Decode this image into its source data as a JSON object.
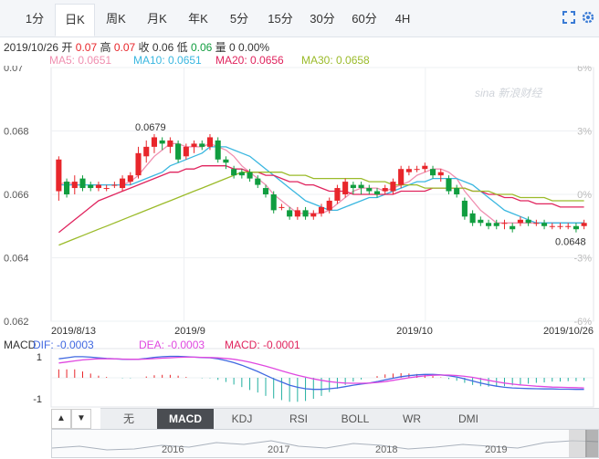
{
  "tabs": [
    "1分",
    "日K",
    "周K",
    "月K",
    "年K",
    "5分",
    "15分",
    "30分",
    "60分",
    "4H"
  ],
  "active_tab": "日K",
  "info": {
    "date": "2019/10/26",
    "open_label": "开",
    "open": "0.07",
    "high_label": "高",
    "high": "0.07",
    "close_label": "收",
    "close": "0.06",
    "low_label": "低",
    "low": "0.06",
    "volume_label": "量",
    "volume": "0 0.00%"
  },
  "ma": {
    "ma5": "MA5: 0.0651",
    "ma10": "MA10: 0.0651",
    "ma20": "MA20: 0.0656",
    "ma30": "MA30: 0.0658"
  },
  "macd_header": {
    "label": "MACD",
    "dif": "DIF: -0.0003",
    "dea": "DEA: -0.0003",
    "macd": "MACD: -0.0001"
  },
  "indicators": [
    "无",
    "MACD",
    "KDJ",
    "RSI",
    "BOLL",
    "WR",
    "DMI"
  ],
  "active_indicator": "MACD",
  "navigator_years": [
    "2016",
    "2017",
    "2018",
    "2019"
  ],
  "watermark": "sina 新浪财经",
  "colors": {
    "up": "#e8262b",
    "down": "#109d3f",
    "ma5": "#f08fb0",
    "ma10": "#3ab7e0",
    "ma20": "#e0245e",
    "ma30": "#9bbb2a",
    "dif": "#4169e1",
    "dea": "#e048e0"
  },
  "chart_data": {
    "type": "candlestick",
    "y_ticks_left": [
      "0.07",
      "0.068",
      "0.066",
      "0.064",
      "0.062"
    ],
    "y_ticks_right": [
      "6%",
      "3%",
      "0%",
      "-3%",
      "-6%"
    ],
    "ylim": [
      0.062,
      0.07
    ],
    "x_labels": [
      "2019/8/13",
      "2019/9",
      "2019/10",
      "2019/10/26"
    ],
    "annotations": {
      "max": "0.0679",
      "min": "0.0648"
    },
    "candles": [
      {
        "o": 0.0661,
        "c": 0.0671,
        "h": 0.0672,
        "l": 0.0658
      },
      {
        "o": 0.0664,
        "c": 0.066,
        "h": 0.0665,
        "l": 0.0659
      },
      {
        "o": 0.0662,
        "c": 0.0664,
        "h": 0.0666,
        "l": 0.066
      },
      {
        "o": 0.0665,
        "c": 0.0662,
        "h": 0.0666,
        "l": 0.0661
      },
      {
        "o": 0.0663,
        "c": 0.0662,
        "h": 0.0664,
        "l": 0.0661
      },
      {
        "o": 0.0662,
        "c": 0.0663,
        "h": 0.0664,
        "l": 0.0661
      },
      {
        "o": 0.0662,
        "c": 0.0662,
        "h": 0.0663,
        "l": 0.0661
      },
      {
        "o": 0.0663,
        "c": 0.0663,
        "h": 0.0664,
        "l": 0.0662
      },
      {
        "o": 0.0662,
        "c": 0.0665,
        "h": 0.0666,
        "l": 0.0661
      },
      {
        "o": 0.0664,
        "c": 0.0666,
        "h": 0.0667,
        "l": 0.0663
      },
      {
        "o": 0.0666,
        "c": 0.0673,
        "h": 0.0675,
        "l": 0.0665
      },
      {
        "o": 0.0672,
        "c": 0.0675,
        "h": 0.0677,
        "l": 0.067
      },
      {
        "o": 0.0675,
        "c": 0.0678,
        "h": 0.0679,
        "l": 0.0673
      },
      {
        "o": 0.0677,
        "c": 0.0676,
        "h": 0.0678,
        "l": 0.0674
      },
      {
        "o": 0.0675,
        "c": 0.0677,
        "h": 0.0678,
        "l": 0.0673
      },
      {
        "o": 0.0676,
        "c": 0.0671,
        "h": 0.0677,
        "l": 0.067
      },
      {
        "o": 0.0672,
        "c": 0.0675,
        "h": 0.0676,
        "l": 0.0671
      },
      {
        "o": 0.0675,
        "c": 0.0676,
        "h": 0.0677,
        "l": 0.0673
      },
      {
        "o": 0.0676,
        "c": 0.0675,
        "h": 0.0677,
        "l": 0.0674
      },
      {
        "o": 0.0675,
        "c": 0.0678,
        "h": 0.0679,
        "l": 0.0674
      },
      {
        "o": 0.0677,
        "c": 0.0671,
        "h": 0.0678,
        "l": 0.067
      },
      {
        "o": 0.0671,
        "c": 0.067,
        "h": 0.0672,
        "l": 0.0668
      },
      {
        "o": 0.0668,
        "c": 0.0666,
        "h": 0.0669,
        "l": 0.0665
      },
      {
        "o": 0.0667,
        "c": 0.0666,
        "h": 0.0668,
        "l": 0.0665
      },
      {
        "o": 0.0667,
        "c": 0.0665,
        "h": 0.0668,
        "l": 0.0664
      },
      {
        "o": 0.0665,
        "c": 0.0663,
        "h": 0.0666,
        "l": 0.0662
      },
      {
        "o": 0.0662,
        "c": 0.066,
        "h": 0.0663,
        "l": 0.0659
      },
      {
        "o": 0.066,
        "c": 0.0655,
        "h": 0.0661,
        "l": 0.0654
      },
      {
        "o": 0.0656,
        "c": 0.0656,
        "h": 0.0657,
        "l": 0.0655
      },
      {
        "o": 0.0655,
        "c": 0.0653,
        "h": 0.0656,
        "l": 0.0652
      },
      {
        "o": 0.0653,
        "c": 0.0655,
        "h": 0.0656,
        "l": 0.0652
      },
      {
        "o": 0.0655,
        "c": 0.0653,
        "h": 0.0656,
        "l": 0.0652
      },
      {
        "o": 0.0653,
        "c": 0.0654,
        "h": 0.0655,
        "l": 0.0652
      },
      {
        "o": 0.0654,
        "c": 0.0656,
        "h": 0.0657,
        "l": 0.0653
      },
      {
        "o": 0.0655,
        "c": 0.0658,
        "h": 0.0659,
        "l": 0.0654
      },
      {
        "o": 0.0658,
        "c": 0.0662,
        "h": 0.0663,
        "l": 0.0657
      },
      {
        "o": 0.066,
        "c": 0.0664,
        "h": 0.0665,
        "l": 0.0659
      },
      {
        "o": 0.0663,
        "c": 0.0662,
        "h": 0.0664,
        "l": 0.066
      },
      {
        "o": 0.0663,
        "c": 0.0662,
        "h": 0.0664,
        "l": 0.066
      },
      {
        "o": 0.0662,
        "c": 0.0661,
        "h": 0.0663,
        "l": 0.066
      },
      {
        "o": 0.0661,
        "c": 0.066,
        "h": 0.0662,
        "l": 0.0659
      },
      {
        "o": 0.0661,
        "c": 0.0662,
        "h": 0.0663,
        "l": 0.066
      },
      {
        "o": 0.0661,
        "c": 0.0664,
        "h": 0.0665,
        "l": 0.066
      },
      {
        "o": 0.0663,
        "c": 0.0668,
        "h": 0.0669,
        "l": 0.0662
      },
      {
        "o": 0.0667,
        "c": 0.0668,
        "h": 0.0669,
        "l": 0.0666
      },
      {
        "o": 0.0668,
        "c": 0.0668,
        "h": 0.0669,
        "l": 0.0667
      },
      {
        "o": 0.0668,
        "c": 0.0669,
        "h": 0.067,
        "l": 0.0667
      },
      {
        "o": 0.0668,
        "c": 0.0666,
        "h": 0.0669,
        "l": 0.0665
      },
      {
        "o": 0.0666,
        "c": 0.0667,
        "h": 0.0668,
        "l": 0.0664
      },
      {
        "o": 0.0665,
        "c": 0.0661,
        "h": 0.0666,
        "l": 0.066
      },
      {
        "o": 0.0662,
        "c": 0.066,
        "h": 0.0663,
        "l": 0.0659
      },
      {
        "o": 0.0658,
        "c": 0.0653,
        "h": 0.0659,
        "l": 0.0652
      },
      {
        "o": 0.0654,
        "c": 0.0651,
        "h": 0.0655,
        "l": 0.065
      },
      {
        "o": 0.0652,
        "c": 0.0651,
        "h": 0.0653,
        "l": 0.065
      },
      {
        "o": 0.0651,
        "c": 0.065,
        "h": 0.0652,
        "l": 0.0649
      },
      {
        "o": 0.0651,
        "c": 0.065,
        "h": 0.0652,
        "l": 0.0649
      },
      {
        "o": 0.0651,
        "c": 0.0651,
        "h": 0.0652,
        "l": 0.0649
      },
      {
        "o": 0.065,
        "c": 0.0649,
        "h": 0.0651,
        "l": 0.0648
      },
      {
        "o": 0.0651,
        "c": 0.0652,
        "h": 0.0653,
        "l": 0.065
      },
      {
        "o": 0.0652,
        "c": 0.0651,
        "h": 0.0653,
        "l": 0.065
      },
      {
        "o": 0.0651,
        "c": 0.0651,
        "h": 0.0652,
        "l": 0.065
      },
      {
        "o": 0.0651,
        "c": 0.065,
        "h": 0.0652,
        "l": 0.0649
      },
      {
        "o": 0.065,
        "c": 0.065,
        "h": 0.0651,
        "l": 0.0649
      },
      {
        "o": 0.065,
        "c": 0.065,
        "h": 0.0651,
        "l": 0.0649
      },
      {
        "o": 0.065,
        "c": 0.065,
        "h": 0.0651,
        "l": 0.0649
      },
      {
        "o": 0.065,
        "c": 0.0649,
        "h": 0.0651,
        "l": 0.0648
      },
      {
        "o": 0.065,
        "c": 0.0651,
        "h": 0.0652,
        "l": 0.0649
      }
    ],
    "ma_lines": {
      "ma5": [
        0.0663,
        0.0664,
        0.0663,
        0.0663,
        0.0663,
        0.0663,
        0.0663,
        0.0663,
        0.0663,
        0.0664,
        0.0666,
        0.0669,
        0.0672,
        0.0674,
        0.0676,
        0.0676,
        0.0675,
        0.0675,
        0.0675,
        0.0676,
        0.0675,
        0.0674,
        0.0672,
        0.0669,
        0.0667,
        0.0665,
        0.0663,
        0.066,
        0.0658,
        0.0656,
        0.0654,
        0.0654,
        0.0654,
        0.0654,
        0.0655,
        0.0657,
        0.0659,
        0.0661,
        0.0662,
        0.0662,
        0.0662,
        0.0661,
        0.0662,
        0.0663,
        0.0664,
        0.0666,
        0.0667,
        0.0668,
        0.0668,
        0.0667,
        0.0665,
        0.0661,
        0.0658,
        0.0655,
        0.0653,
        0.0651,
        0.0651,
        0.0651,
        0.0651,
        0.0651,
        0.0651,
        0.0651,
        0.0651,
        0.0651,
        0.0651,
        0.0651,
        0.0651
      ],
      "ma10": [
        0.0663,
        0.0663,
        0.0663,
        0.0663,
        0.0663,
        0.0663,
        0.0663,
        0.0663,
        0.0663,
        0.0663,
        0.0664,
        0.0665,
        0.0666,
        0.0667,
        0.0669,
        0.067,
        0.0671,
        0.0672,
        0.0673,
        0.0675,
        0.0675,
        0.0675,
        0.0674,
        0.0673,
        0.0672,
        0.067,
        0.0668,
        0.0666,
        0.0664,
        0.0662,
        0.066,
        0.0658,
        0.0657,
        0.0656,
        0.0655,
        0.0655,
        0.0656,
        0.0657,
        0.0658,
        0.0659,
        0.0659,
        0.066,
        0.0661,
        0.0662,
        0.0663,
        0.0664,
        0.0664,
        0.0665,
        0.0665,
        0.0665,
        0.0665,
        0.0664,
        0.0663,
        0.0661,
        0.0659,
        0.0657,
        0.0655,
        0.0654,
        0.0653,
        0.0652,
        0.0651,
        0.0651,
        0.0651,
        0.0651,
        0.0651,
        0.0651,
        0.0651
      ],
      "ma20": [
        0.0648,
        0.065,
        0.0652,
        0.0654,
        0.0656,
        0.0658,
        0.0659,
        0.066,
        0.0661,
        0.0662,
        0.0663,
        0.0664,
        0.0665,
        0.0666,
        0.0667,
        0.0667,
        0.0668,
        0.0668,
        0.0669,
        0.0669,
        0.0669,
        0.0669,
        0.0668,
        0.0668,
        0.0667,
        0.0667,
        0.0666,
        0.0666,
        0.0665,
        0.0664,
        0.0664,
        0.0663,
        0.0663,
        0.0662,
        0.0661,
        0.0661,
        0.0661,
        0.066,
        0.066,
        0.066,
        0.066,
        0.066,
        0.066,
        0.0661,
        0.0661,
        0.0661,
        0.0661,
        0.0662,
        0.0662,
        0.0662,
        0.0662,
        0.0662,
        0.0661,
        0.0661,
        0.066,
        0.066,
        0.0659,
        0.0659,
        0.0658,
        0.0658,
        0.0657,
        0.0657,
        0.0657,
        0.0656,
        0.0656,
        0.0656,
        0.0656
      ],
      "ma30": [
        0.0644,
        0.0645,
        0.0646,
        0.0647,
        0.0648,
        0.0649,
        0.065,
        0.0651,
        0.0652,
        0.0653,
        0.0654,
        0.0655,
        0.0656,
        0.0657,
        0.0658,
        0.0659,
        0.066,
        0.0661,
        0.0662,
        0.0663,
        0.0664,
        0.0665,
        0.0666,
        0.0667,
        0.0667,
        0.0667,
        0.0667,
        0.0667,
        0.0667,
        0.0666,
        0.0666,
        0.0666,
        0.0665,
        0.0665,
        0.0665,
        0.0665,
        0.0665,
        0.0665,
        0.0665,
        0.0664,
        0.0664,
        0.0664,
        0.0663,
        0.0663,
        0.0663,
        0.0663,
        0.0662,
        0.0662,
        0.0662,
        0.0662,
        0.0662,
        0.0662,
        0.0661,
        0.0661,
        0.0661,
        0.066,
        0.066,
        0.066,
        0.0659,
        0.0659,
        0.0659,
        0.0659,
        0.0658,
        0.0658,
        0.0658,
        0.0658,
        0.0658
      ]
    },
    "macd": {
      "y_ticks": [
        "1",
        "-1"
      ],
      "ylim": [
        -1.3,
        1.3
      ],
      "dif": [
        0.9,
        0.95,
        1.0,
        1.0,
        0.98,
        0.95,
        0.92,
        0.9,
        0.88,
        0.87,
        0.88,
        0.92,
        0.97,
        1.0,
        1.02,
        1.02,
        1.0,
        0.98,
        0.96,
        0.95,
        0.9,
        0.82,
        0.72,
        0.6,
        0.45,
        0.3,
        0.12,
        -0.05,
        -0.2,
        -0.35,
        -0.45,
        -0.52,
        -0.55,
        -0.55,
        -0.52,
        -0.48,
        -0.42,
        -0.35,
        -0.3,
        -0.25,
        -0.18,
        -0.1,
        -0.02,
        0.05,
        0.1,
        0.14,
        0.16,
        0.16,
        0.14,
        0.1,
        0.04,
        -0.05,
        -0.15,
        -0.25,
        -0.33,
        -0.4,
        -0.45,
        -0.48,
        -0.5,
        -0.51,
        -0.52,
        -0.53,
        -0.53,
        -0.54,
        -0.54,
        -0.55,
        -0.55
      ],
      "dea": [
        0.7,
        0.75,
        0.8,
        0.85,
        0.88,
        0.9,
        0.9,
        0.9,
        0.89,
        0.88,
        0.88,
        0.89,
        0.91,
        0.93,
        0.95,
        0.97,
        0.98,
        0.98,
        0.97,
        0.96,
        0.95,
        0.92,
        0.88,
        0.82,
        0.74,
        0.65,
        0.55,
        0.44,
        0.33,
        0.22,
        0.12,
        0.03,
        -0.05,
        -0.12,
        -0.18,
        -0.22,
        -0.25,
        -0.26,
        -0.26,
        -0.25,
        -0.22,
        -0.18,
        -0.12,
        -0.06,
        0.0,
        0.05,
        0.09,
        0.12,
        0.13,
        0.13,
        0.11,
        0.07,
        0.02,
        -0.05,
        -0.12,
        -0.19,
        -0.25,
        -0.3,
        -0.34,
        -0.37,
        -0.4,
        -0.42,
        -0.44,
        -0.45,
        -0.46,
        -0.47,
        -0.48
      ],
      "hist": [
        0.4,
        0.4,
        0.4,
        0.3,
        0.2,
        0.1,
        0.04,
        0.0,
        -0.02,
        -0.02,
        0.0,
        0.06,
        0.12,
        0.14,
        0.14,
        0.1,
        0.04,
        0.0,
        -0.02,
        -0.02,
        -0.1,
        -0.2,
        -0.32,
        -0.44,
        -0.58,
        -0.7,
        -0.86,
        -0.98,
        -1.06,
        -1.14,
        -1.14,
        -1.1,
        -1.0,
        -0.86,
        -0.68,
        -0.52,
        -0.34,
        -0.18,
        -0.08,
        0.0,
        0.08,
        0.16,
        0.2,
        0.22,
        0.2,
        0.18,
        0.14,
        0.08,
        0.02,
        -0.06,
        -0.14,
        -0.24,
        -0.34,
        -0.4,
        -0.42,
        -0.42,
        -0.4,
        -0.36,
        -0.32,
        -0.28,
        -0.24,
        -0.22,
        -0.18,
        -0.18,
        -0.16,
        -0.16,
        -0.14
      ]
    }
  }
}
